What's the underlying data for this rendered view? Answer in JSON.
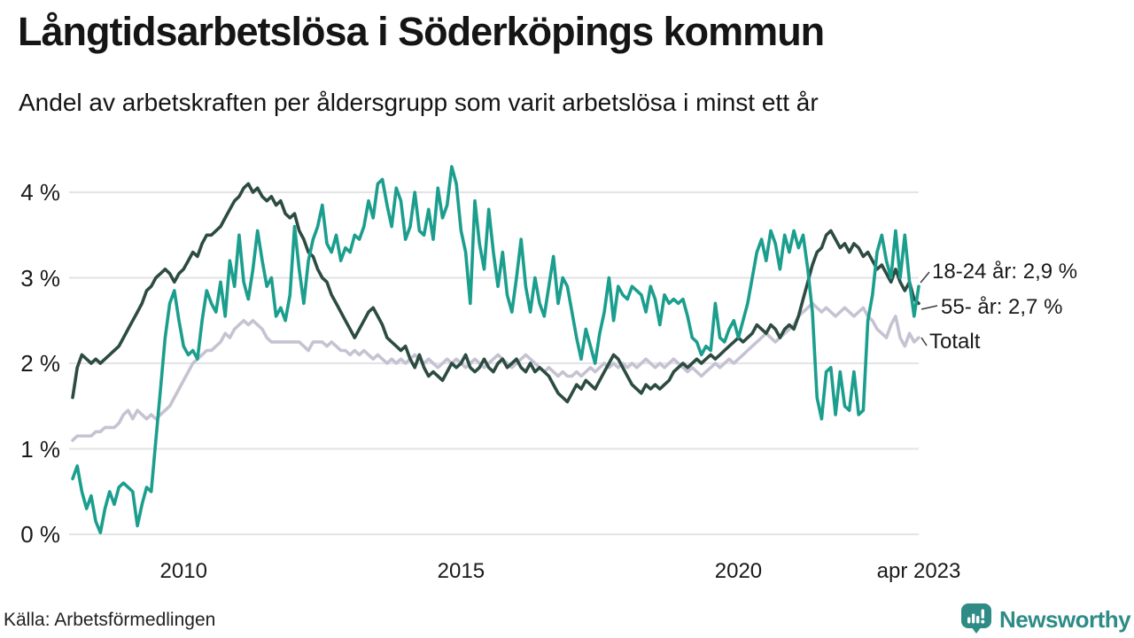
{
  "header": {
    "title": "Långtidsarbetslösa i Söderköpings kommun",
    "subtitle": "Andel av arbetskraften per åldersgrupp som varit arbetslösa i minst ett år"
  },
  "chart_data": {
    "type": "line",
    "title": "Långtidsarbetslösa i Söderköpings kommun",
    "subtitle": "Andel av arbetskraften per åldersgrupp som varit arbetslösa i minst ett år",
    "unit": "% av arbetskraften",
    "frequency": "monthly",
    "x_start": "2008-01",
    "x_end": "2023-04",
    "ylim": [
      0,
      4.35
    ],
    "grid": "horizontal",
    "legend_position": "right-end-labels",
    "y_ticks": [
      "0 %",
      "1 %",
      "2 %",
      "3 %",
      "4 %"
    ],
    "x_ticks": [
      {
        "label": "2010",
        "month_index": 24
      },
      {
        "label": "2015",
        "month_index": 84
      },
      {
        "label": "2020",
        "month_index": 144
      },
      {
        "label": "apr 2023",
        "month_index": 183
      }
    ],
    "series": [
      {
        "name": "18-24 år",
        "end_label": "18-24 år: 2,9 %",
        "color": "#1b9e8d",
        "values": [
          0.65,
          0.8,
          0.5,
          0.3,
          0.45,
          0.15,
          0.02,
          0.3,
          0.5,
          0.35,
          0.55,
          0.6,
          0.55,
          0.5,
          0.1,
          0.35,
          0.55,
          0.5,
          1.1,
          1.7,
          2.3,
          2.7,
          2.85,
          2.5,
          2.2,
          2.1,
          2.15,
          2.05,
          2.5,
          2.85,
          2.7,
          2.6,
          2.95,
          2.55,
          3.2,
          2.9,
          3.5,
          2.95,
          2.75,
          3.1,
          3.55,
          3.2,
          2.9,
          3.0,
          2.55,
          2.65,
          2.5,
          2.8,
          3.6,
          3.1,
          2.7,
          3.2,
          3.45,
          3.6,
          3.85,
          3.4,
          3.3,
          3.5,
          3.2,
          3.35,
          3.3,
          3.5,
          3.45,
          3.6,
          3.9,
          3.7,
          4.1,
          4.15,
          3.85,
          3.6,
          4.05,
          3.9,
          3.45,
          3.6,
          4.0,
          3.55,
          3.5,
          3.8,
          3.45,
          4.05,
          3.7,
          3.85,
          4.3,
          4.1,
          3.55,
          3.3,
          2.7,
          3.9,
          3.4,
          3.1,
          3.8,
          3.3,
          2.9,
          3.3,
          2.8,
          2.6,
          3.0,
          3.45,
          2.9,
          2.6,
          3.0,
          2.7,
          2.55,
          2.9,
          3.25,
          2.7,
          3.0,
          2.9,
          2.6,
          2.3,
          2.05,
          2.4,
          2.2,
          2.0,
          2.35,
          2.6,
          3.0,
          2.5,
          2.9,
          2.8,
          2.75,
          2.9,
          2.85,
          2.8,
          2.6,
          2.9,
          2.75,
          2.45,
          2.8,
          2.7,
          2.75,
          2.7,
          2.75,
          2.55,
          2.3,
          2.25,
          2.1,
          2.2,
          2.15,
          2.7,
          2.3,
          2.25,
          2.4,
          2.5,
          2.3,
          2.5,
          2.7,
          3.0,
          3.3,
          3.45,
          3.2,
          3.55,
          3.4,
          3.1,
          3.5,
          3.3,
          3.55,
          3.35,
          3.5,
          3.1,
          2.6,
          1.6,
          1.35,
          1.9,
          1.95,
          1.4,
          1.9,
          1.5,
          1.45,
          1.9,
          1.4,
          1.45,
          2.5,
          2.8,
          3.3,
          3.5,
          3.2,
          3.0,
          3.55,
          3.0,
          3.5,
          2.95,
          2.55,
          2.9
        ]
      },
      {
        "name": "55- år",
        "end_label": "55- år: 2,7 %",
        "color": "#2c4b41",
        "values": [
          1.6,
          1.95,
          2.1,
          2.05,
          2.0,
          2.05,
          2.0,
          2.05,
          2.1,
          2.15,
          2.2,
          2.3,
          2.4,
          2.5,
          2.6,
          2.7,
          2.85,
          2.9,
          3.0,
          3.05,
          3.1,
          3.05,
          2.95,
          3.05,
          3.1,
          3.2,
          3.3,
          3.25,
          3.4,
          3.5,
          3.5,
          3.55,
          3.6,
          3.7,
          3.8,
          3.9,
          3.95,
          4.05,
          4.1,
          4.0,
          4.05,
          3.95,
          3.9,
          3.95,
          3.85,
          3.9,
          3.75,
          3.7,
          3.75,
          3.55,
          3.45,
          3.3,
          3.25,
          3.1,
          3.0,
          2.95,
          2.8,
          2.7,
          2.6,
          2.5,
          2.4,
          2.3,
          2.4,
          2.5,
          2.6,
          2.65,
          2.55,
          2.45,
          2.3,
          2.25,
          2.2,
          2.15,
          2.2,
          2.05,
          1.95,
          2.1,
          1.95,
          1.85,
          1.9,
          1.85,
          1.8,
          1.9,
          2.0,
          1.95,
          2.0,
          2.1,
          1.95,
          1.9,
          1.95,
          2.05,
          1.95,
          1.9,
          2.0,
          2.05,
          1.95,
          2.0,
          2.05,
          1.95,
          1.9,
          2.0,
          1.9,
          1.95,
          1.9,
          1.85,
          1.75,
          1.65,
          1.6,
          1.55,
          1.65,
          1.75,
          1.7,
          1.8,
          1.75,
          1.7,
          1.8,
          1.9,
          2.0,
          2.1,
          2.05,
          1.95,
          1.85,
          1.75,
          1.7,
          1.65,
          1.75,
          1.7,
          1.75,
          1.7,
          1.75,
          1.8,
          1.9,
          1.95,
          2.0,
          1.95,
          2.0,
          2.05,
          2.0,
          2.05,
          2.1,
          2.05,
          2.1,
          2.15,
          2.2,
          2.25,
          2.3,
          2.25,
          2.3,
          2.35,
          2.45,
          2.4,
          2.35,
          2.45,
          2.4,
          2.3,
          2.4,
          2.45,
          2.4,
          2.55,
          2.75,
          2.95,
          3.15,
          3.3,
          3.35,
          3.5,
          3.55,
          3.45,
          3.35,
          3.4,
          3.3,
          3.4,
          3.35,
          3.25,
          3.3,
          3.2,
          3.1,
          3.15,
          3.05,
          2.95,
          3.1,
          2.95,
          2.85,
          2.95,
          2.75,
          2.7
        ]
      },
      {
        "name": "Totalt",
        "end_label": "Totalt",
        "color": "#c5c3d2",
        "values": [
          1.1,
          1.15,
          1.15,
          1.15,
          1.15,
          1.2,
          1.2,
          1.25,
          1.25,
          1.25,
          1.3,
          1.4,
          1.45,
          1.35,
          1.45,
          1.4,
          1.35,
          1.4,
          1.35,
          1.4,
          1.45,
          1.5,
          1.6,
          1.7,
          1.8,
          1.9,
          2.0,
          2.05,
          2.1,
          2.15,
          2.15,
          2.2,
          2.25,
          2.35,
          2.3,
          2.4,
          2.45,
          2.5,
          2.45,
          2.5,
          2.45,
          2.4,
          2.3,
          2.25,
          2.25,
          2.25,
          2.25,
          2.25,
          2.25,
          2.25,
          2.2,
          2.15,
          2.25,
          2.25,
          2.25,
          2.2,
          2.25,
          2.2,
          2.15,
          2.15,
          2.1,
          2.15,
          2.1,
          2.15,
          2.1,
          2.05,
          2.1,
          2.05,
          2.0,
          2.05,
          2.0,
          2.05,
          2.0,
          2.05,
          2.1,
          2.05,
          2.0,
          2.05,
          2.0,
          1.95,
          2.0,
          2.05,
          2.0,
          2.05,
          2.0,
          1.95,
          2.0,
          2.05,
          2.0,
          1.95,
          2.0,
          2.05,
          2.1,
          2.05,
          2.0,
          1.95,
          2.0,
          2.05,
          2.1,
          2.05,
          2.0,
          1.95,
          1.9,
          1.95,
          1.9,
          1.85,
          1.9,
          1.85,
          1.85,
          1.9,
          1.85,
          1.9,
          1.95,
          1.9,
          1.95,
          2.0,
          1.95,
          2.0,
          1.95,
          2.0,
          1.95,
          2.0,
          1.95,
          2.0,
          2.05,
          2.0,
          1.95,
          2.0,
          1.95,
          2.0,
          2.05,
          2.0,
          1.95,
          1.9,
          1.95,
          1.9,
          1.85,
          1.9,
          1.95,
          2.0,
          1.95,
          2.0,
          2.05,
          2.0,
          2.05,
          2.1,
          2.15,
          2.2,
          2.25,
          2.3,
          2.35,
          2.3,
          2.25,
          2.3,
          2.35,
          2.4,
          2.45,
          2.55,
          2.6,
          2.65,
          2.7,
          2.65,
          2.6,
          2.65,
          2.6,
          2.55,
          2.6,
          2.65,
          2.6,
          2.55,
          2.6,
          2.65,
          2.55,
          2.5,
          2.4,
          2.35,
          2.3,
          2.45,
          2.55,
          2.3,
          2.2,
          2.35,
          2.25,
          2.3
        ]
      }
    ]
  },
  "footer": {
    "source": "Källa: Arbetsförmedlingen",
    "brand": "Newsworthy"
  }
}
